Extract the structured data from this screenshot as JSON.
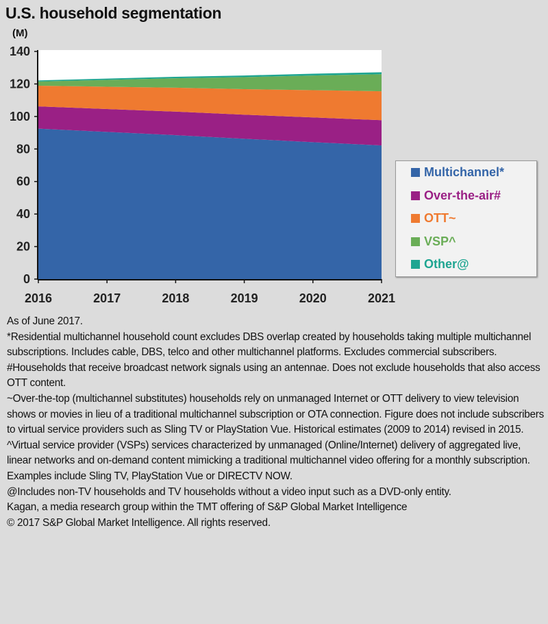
{
  "title": "U.S. household segmentation",
  "chart_data": {
    "type": "area",
    "stacked": true,
    "title": "U.S. household segmentation",
    "ylabel": "(M)",
    "xlabel": "",
    "x": [
      "2016",
      "2017",
      "2018",
      "2019",
      "2020",
      "2021"
    ],
    "ylim": [
      0,
      140
    ],
    "yticks": [
      "0",
      "20",
      "40",
      "60",
      "80",
      "100",
      "120",
      "140"
    ],
    "grid": false,
    "legend_position": "right",
    "series": [
      {
        "name": "Multichannel*",
        "color": "#3465a8",
        "values": [
          92.5,
          90.5,
          88.5,
          86.3,
          84.2,
          82.2
        ]
      },
      {
        "name": "Over-the-air#",
        "color": "#9a2085",
        "values": [
          13.7,
          14.1,
          14.5,
          14.8,
          15.2,
          15.5
        ]
      },
      {
        "name": "OTT~",
        "color": "#ef7a30",
        "values": [
          12.7,
          13.7,
          14.7,
          15.7,
          16.8,
          17.8
        ]
      },
      {
        "name": "VSP^",
        "color": "#6aad57",
        "values": [
          2.6,
          4.2,
          5.8,
          7.4,
          9.0,
          10.5
        ]
      },
      {
        "name": "Other@",
        "color": "#1ea591",
        "values": [
          0.7,
          0.8,
          0.9,
          1.0,
          1.1,
          1.2
        ]
      }
    ]
  },
  "notes": [
    "As of June 2017.",
    "*Residential multichannel household count excludes DBS overlap created by households taking multiple multichannel subscriptions. Includes cable, DBS, telco and other multichannel platforms. Excludes commercial subscribers.",
    "#Households that receive broadcast network signals using an antennae. Does not exclude households that also access OTT content.",
    "~Over-the-top (multichannel substitutes) households rely on unmanaged Internet or OTT delivery to view television shows or movies in lieu of a traditional multichannel subscription or OTA connection. Figure does not include subscribers to virtual service providers such as Sling TV or PlayStation Vue. Historical estimates (2009 to 2014) revised in 2015.",
    "^Virtual service provider (VSPs) services characterized by unmanaged (Online/Internet) delivery of aggregated live, linear networks and on-demand content mimicking a traditional multichannel video offering for a monthly subscription. Examples include Sling TV, PlayStation Vue or DIRECTV NOW.",
    "@Includes non-TV households and TV households without a video input such as a DVD-only entity.",
    "Kagan, a media research group within the TMT offering of S&P Global Market Intelligence",
    "© 2017 S&P Global Market Intelligence. All rights reserved."
  ]
}
